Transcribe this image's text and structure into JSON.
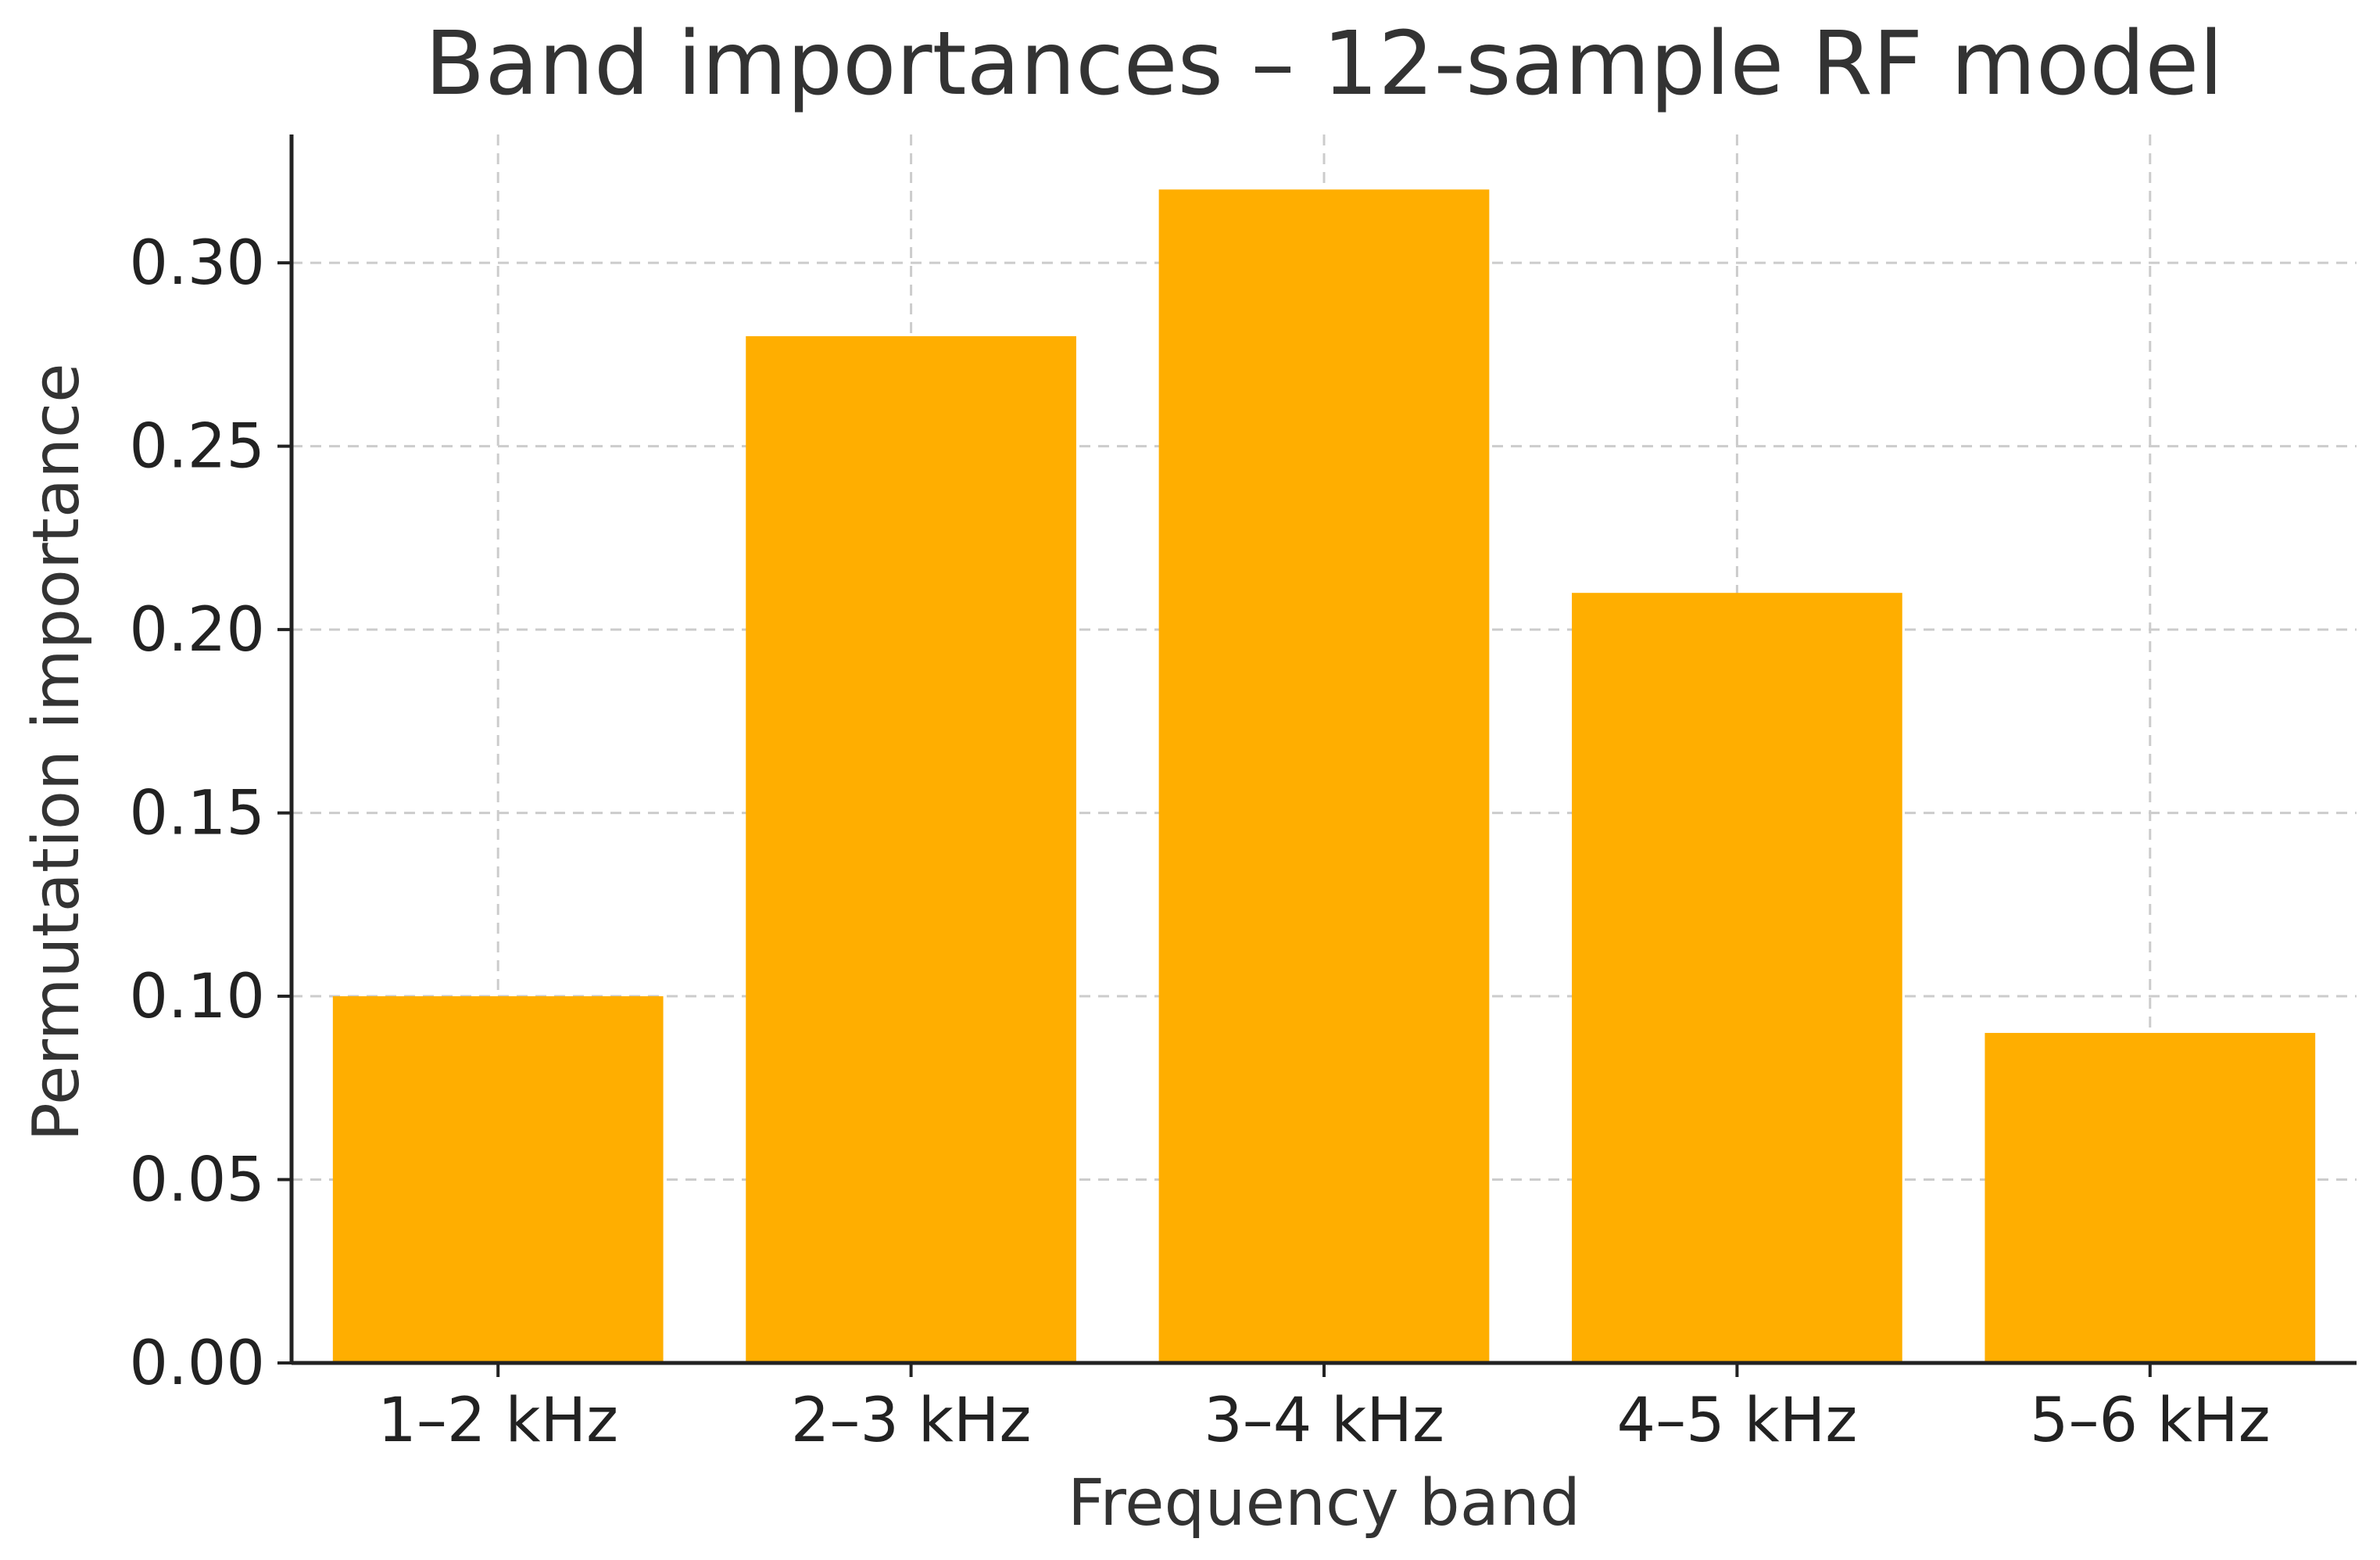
{
  "chart_data": {
    "type": "bar",
    "title": "Band importances – 12-sample RF model",
    "xlabel": "Frequency band",
    "ylabel": "Permutation importance",
    "categories": [
      "1–2 kHz",
      "2–3 kHz",
      "3–4 kHz",
      "4–5 kHz",
      "5–6 kHz"
    ],
    "values": [
      0.1,
      0.28,
      0.32,
      0.21,
      0.09
    ],
    "ylim": [
      0,
      0.335
    ],
    "yticks": [
      0.0,
      0.05,
      0.1,
      0.15,
      0.2,
      0.25,
      0.3
    ],
    "ytick_labels": [
      "0.00",
      "0.05",
      "0.10",
      "0.15",
      "0.20",
      "0.25",
      "0.30"
    ],
    "grid": true,
    "bar_color": "#FFAE00",
    "grid_color": "#CCCCCC"
  }
}
